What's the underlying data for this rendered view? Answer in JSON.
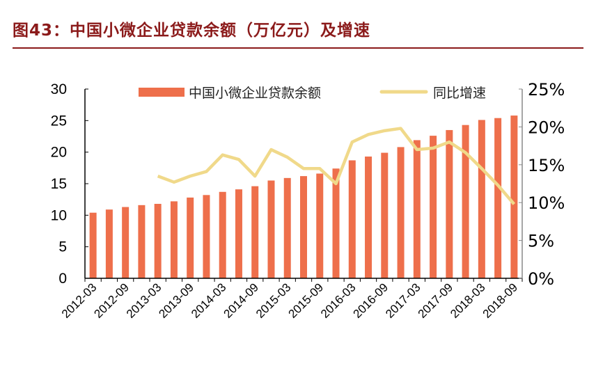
{
  "title": "图43：中国小微企业贷款余额（万亿元）及增速",
  "chart_data": {
    "type": "bar+line",
    "title": "图43：中国小微企业贷款余额（万亿元）及增速",
    "categories": [
      "2012-03",
      "2012-06",
      "2012-09",
      "2012-12",
      "2013-03",
      "2013-06",
      "2013-09",
      "2013-12",
      "2014-03",
      "2014-06",
      "2014-09",
      "2014-12",
      "2015-03",
      "2015-06",
      "2015-09",
      "2015-12",
      "2016-03",
      "2016-06",
      "2016-09",
      "2016-12",
      "2017-03",
      "2017-06",
      "2017-09",
      "2017-12",
      "2018-03",
      "2018-06",
      "2018-09"
    ],
    "x_tick_labels": [
      "2012-03",
      "2012-09",
      "2013-03",
      "2013-09",
      "2014-03",
      "2014-09",
      "2015-03",
      "2015-09",
      "2016-03",
      "2016-09",
      "2017-03",
      "2017-09",
      "2018-03",
      "2018-09"
    ],
    "series": [
      {
        "name": "中国小微企业贷款余额",
        "axis": "left",
        "type": "bar",
        "color": "#ee6f4b",
        "values": [
          10.4,
          10.9,
          11.3,
          11.6,
          11.8,
          12.2,
          12.8,
          13.2,
          13.7,
          14.1,
          14.6,
          15.5,
          15.9,
          16.2,
          16.6,
          17.4,
          18.7,
          19.3,
          19.9,
          20.8,
          21.9,
          22.6,
          23.5,
          24.3,
          25.1,
          25.4,
          25.8
        ]
      },
      {
        "name": "同比增速",
        "axis": "right",
        "type": "line",
        "color": "#f0d98a",
        "values": [
          null,
          null,
          null,
          null,
          13.5,
          12.7,
          13.5,
          14.1,
          16.3,
          15.7,
          13.5,
          17.0,
          16.0,
          14.5,
          14.5,
          12.5,
          18.0,
          19.0,
          19.5,
          19.8,
          17.0,
          17.2,
          18.0,
          16.6,
          14.5,
          12.3,
          9.8
        ]
      }
    ],
    "y_left": {
      "ylim": [
        0,
        30
      ],
      "ticks": [
        "0",
        "5",
        "10",
        "15",
        "20",
        "25",
        "30"
      ]
    },
    "y_right": {
      "ylim": [
        0,
        25
      ],
      "unit": "%",
      "ticks": [
        "0%",
        "5%",
        "10%",
        "15%",
        "20%",
        "25%"
      ]
    },
    "legend": "top",
    "grid": false
  }
}
